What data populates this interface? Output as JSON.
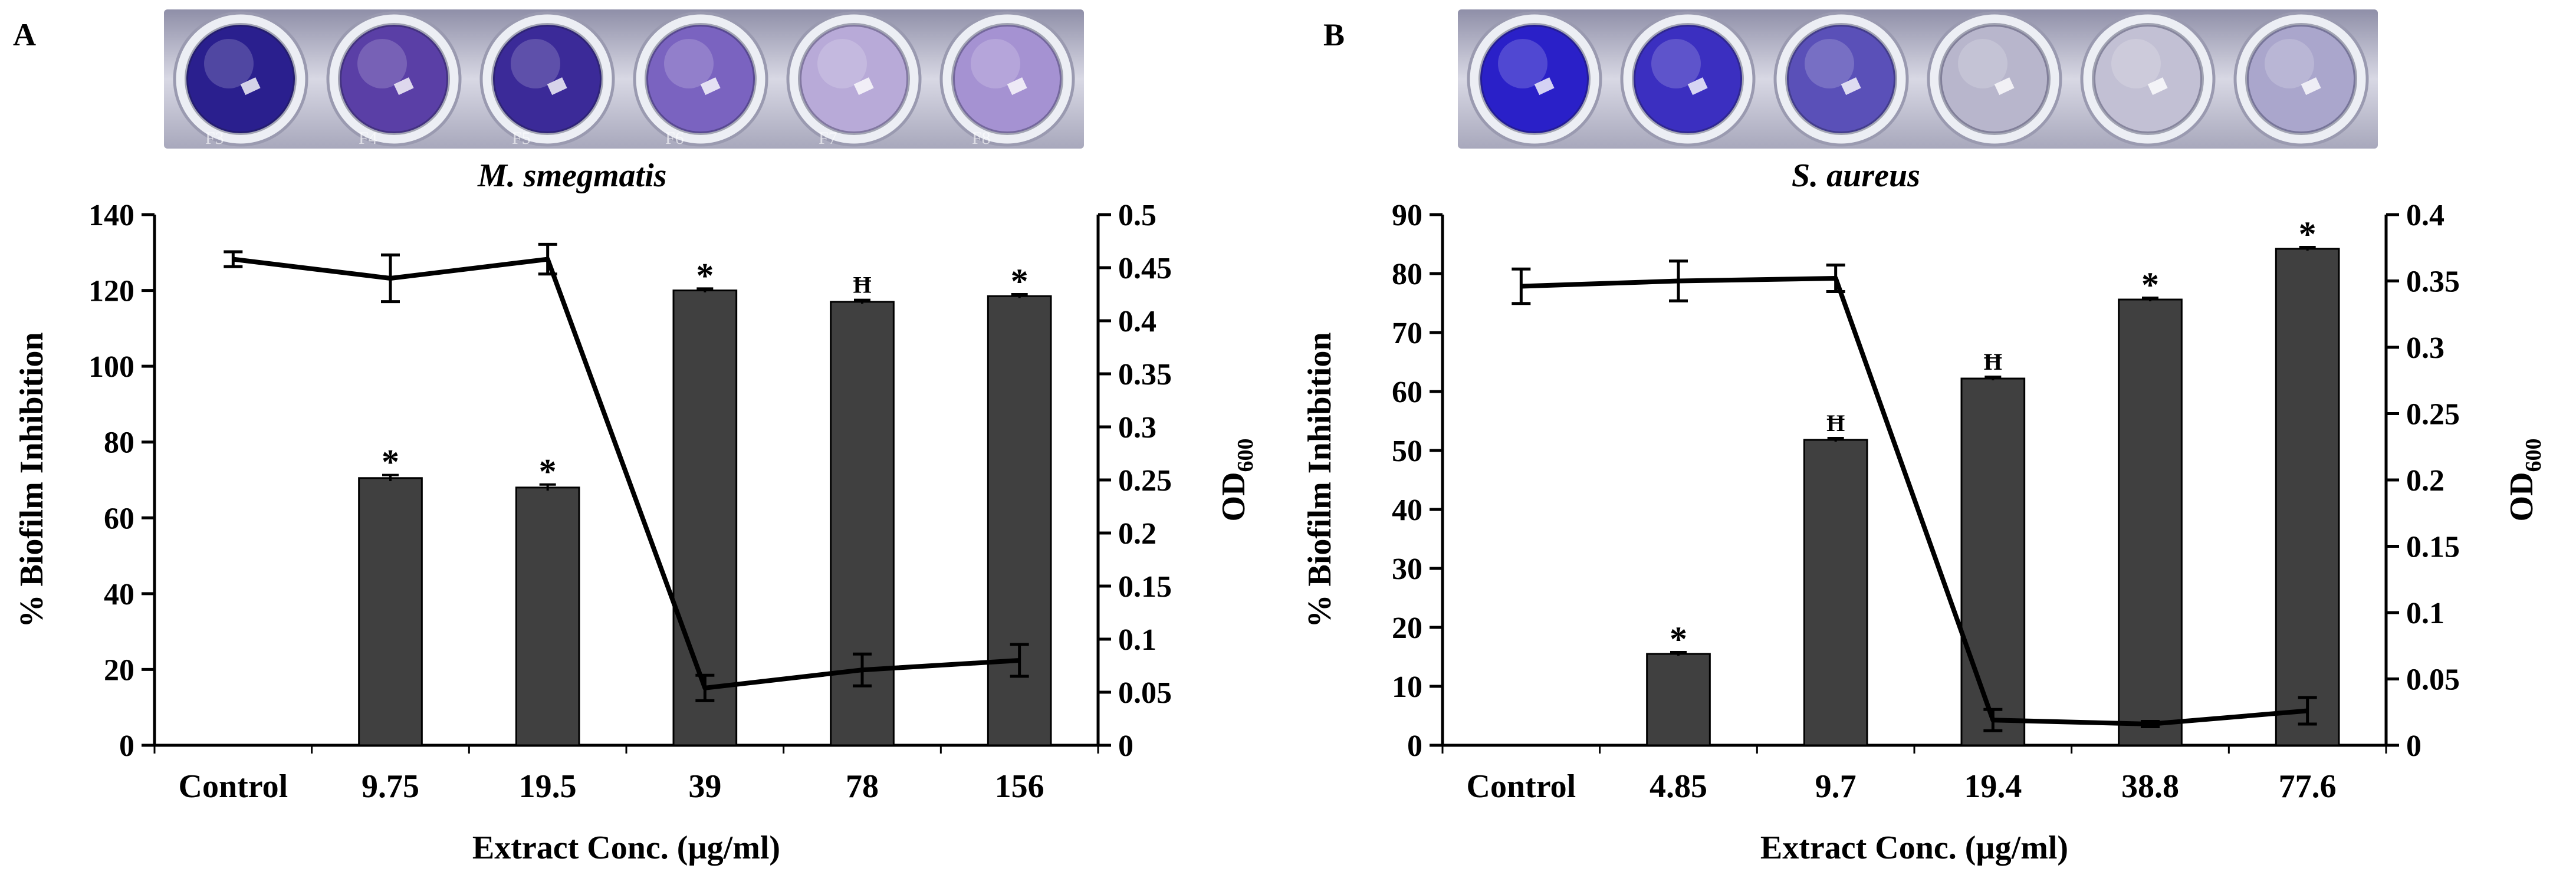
{
  "panels": [
    {
      "letter": "A",
      "organism": "M. smegmatis",
      "plate_well_colors": [
        "#2a1f8e",
        "#5a3fa6",
        "#3b2a98",
        "#7a63c0",
        "#b8aad8",
        "#a592d2"
      ],
      "plate_labels": [
        "F3",
        "F4",
        "F5",
        "F6",
        "F7",
        "F8"
      ],
      "chart_data": {
        "type": "bar",
        "xlabel": "Extract Conc. (µg/ml)",
        "ylabel": "% Biofilm Inhibition",
        "y2label": "OD",
        "y2label_sub": "600",
        "categories": [
          "Control",
          "9.75",
          "19.5",
          "39",
          "78",
          "156"
        ],
        "ylim": [
          0,
          140
        ],
        "yticks": [
          0,
          20,
          40,
          60,
          80,
          100,
          120,
          140
        ],
        "y2lim": [
          0,
          0.5
        ],
        "y2ticks": [
          0,
          0.05,
          0.1,
          0.15,
          0.2,
          0.25,
          0.3,
          0.35,
          0.4,
          0.45,
          0.5
        ],
        "bar_color": "#404040",
        "series": [
          {
            "name": "% Biofilm Inhibition",
            "kind": "bar",
            "axis": "left",
            "values": [
              0,
              70.5,
              68.0,
              120.0,
              117.0,
              118.5
            ],
            "errors": [
              0,
              0.8,
              0.8,
              0.5,
              0.5,
              0.5
            ],
            "markers": [
              "",
              "*",
              "*",
              "*",
              "Ħ",
              "*"
            ]
          },
          {
            "name": "OD600",
            "kind": "line",
            "axis": "right",
            "values": [
              0.458,
              0.44,
              0.458,
              0.054,
              0.071,
              0.08
            ],
            "errors": [
              0.007,
              0.022,
              0.014,
              0.012,
              0.015,
              0.015
            ]
          }
        ]
      }
    },
    {
      "letter": "B",
      "organism": "S. aureus",
      "plate_well_colors": [
        "#2a20c8",
        "#3b2fc0",
        "#5a50b8",
        "#b8b6cc",
        "#c2c0d4",
        "#aaa6cc"
      ],
      "plate_labels": [],
      "chart_data": {
        "type": "bar",
        "xlabel": "Extract Conc. (µg/ml)",
        "ylabel": "% Biofilm Inhibition",
        "y2label": "OD",
        "y2label_sub": "600",
        "categories": [
          "Control",
          "4.85",
          "9.7",
          "19.4",
          "38.8",
          "77.6"
        ],
        "ylim": [
          0,
          90
        ],
        "yticks": [
          0,
          10,
          20,
          30,
          40,
          50,
          60,
          70,
          80,
          90
        ],
        "y2lim": [
          0,
          0.4
        ],
        "y2ticks": [
          0,
          0.05,
          0.1,
          0.15,
          0.2,
          0.25,
          0.3,
          0.35,
          0.4
        ],
        "bar_color": "#404040",
        "series": [
          {
            "name": "% Biofilm Inhibition",
            "kind": "bar",
            "axis": "left",
            "values": [
              0,
              15.5,
              51.8,
              62.2,
              75.6,
              84.2
            ],
            "errors": [
              0,
              0.3,
              0.3,
              0.3,
              0.3,
              0.3
            ],
            "markers": [
              "",
              "*",
              "Ħ",
              "Ħ",
              "*",
              "*"
            ]
          },
          {
            "name": "OD600",
            "kind": "line",
            "axis": "right",
            "values": [
              0.346,
              0.35,
              0.352,
              0.019,
              0.016,
              0.026
            ],
            "errors": [
              0.013,
              0.015,
              0.01,
              0.008,
              0.002,
              0.01
            ]
          }
        ]
      }
    }
  ]
}
